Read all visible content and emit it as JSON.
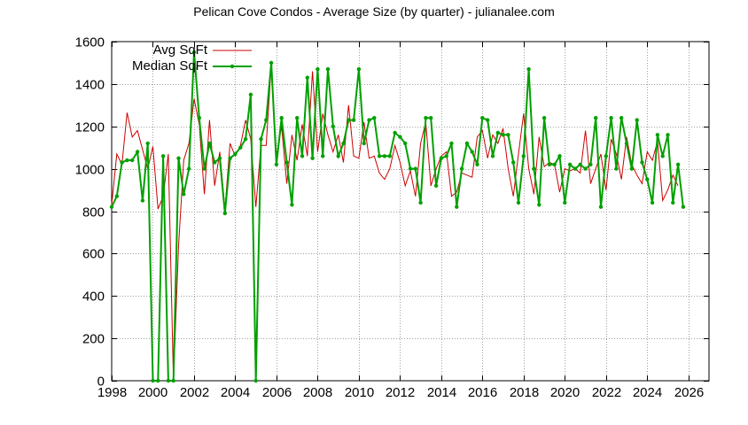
{
  "chart_data": {
    "type": "line",
    "title": "Pelican Cove Condos - Average Size (by quarter) - julianalee.com",
    "xlim": [
      1998,
      2027
    ],
    "ylim": [
      0,
      1600
    ],
    "x_ticks": [
      1998,
      2000,
      2002,
      2004,
      2006,
      2008,
      2010,
      2012,
      2014,
      2016,
      2018,
      2020,
      2022,
      2024,
      2026
    ],
    "y_ticks": [
      0,
      200,
      400,
      600,
      800,
      1000,
      1200,
      1400,
      1600
    ],
    "grid": true,
    "legend_position": "top-left",
    "series": [
      {
        "name": "Avg SqFt",
        "color": "#cc0000",
        "points": [
          [
            1998.0,
            830
          ],
          [
            1998.25,
            1070
          ],
          [
            1998.5,
            1020
          ],
          [
            1998.75,
            1265
          ],
          [
            1999.0,
            1150
          ],
          [
            1999.25,
            1180
          ],
          [
            1999.5,
            1090
          ],
          [
            1999.75,
            1000
          ],
          [
            2000.0,
            1105
          ],
          [
            2000.25,
            810
          ],
          [
            2000.5,
            870
          ],
          [
            2000.75,
            1070
          ],
          [
            2001.0,
            0
          ],
          [
            2001.25,
            640
          ],
          [
            2001.5,
            1040
          ],
          [
            2001.75,
            1120
          ],
          [
            2002.0,
            1330
          ],
          [
            2002.25,
            1210
          ],
          [
            2002.5,
            880
          ],
          [
            2002.75,
            1230
          ],
          [
            2003.0,
            920
          ],
          [
            2003.25,
            1080
          ],
          [
            2003.5,
            810
          ],
          [
            2003.75,
            1120
          ],
          [
            2004.0,
            1060
          ],
          [
            2004.25,
            1110
          ],
          [
            2004.5,
            1230
          ],
          [
            2004.75,
            1140
          ],
          [
            2005.0,
            820
          ],
          [
            2005.25,
            1110
          ],
          [
            2005.5,
            1110
          ],
          [
            2005.75,
            1490
          ],
          [
            2006.0,
            1060
          ],
          [
            2006.25,
            1200
          ],
          [
            2006.5,
            930
          ],
          [
            2006.75,
            1160
          ],
          [
            2007.0,
            1040
          ],
          [
            2007.25,
            1210
          ],
          [
            2007.5,
            1060
          ],
          [
            2007.75,
            1460
          ],
          [
            2008.0,
            1080
          ],
          [
            2008.25,
            1260
          ],
          [
            2008.5,
            1160
          ],
          [
            2008.75,
            1080
          ],
          [
            2009.0,
            1160
          ],
          [
            2009.25,
            1030
          ],
          [
            2009.5,
            1300
          ],
          [
            2009.75,
            1060
          ],
          [
            2010.0,
            1050
          ],
          [
            2010.25,
            1220
          ],
          [
            2010.5,
            1050
          ],
          [
            2010.75,
            1060
          ],
          [
            2011.0,
            980
          ],
          [
            2011.25,
            950
          ],
          [
            2011.5,
            1000
          ],
          [
            2011.75,
            1110
          ],
          [
            2012.0,
            1030
          ],
          [
            2012.25,
            920
          ],
          [
            2012.5,
            990
          ],
          [
            2012.75,
            870
          ],
          [
            2013.0,
            1120
          ],
          [
            2013.25,
            1220
          ],
          [
            2013.5,
            920
          ],
          [
            2013.75,
            1000
          ],
          [
            2014.0,
            1060
          ],
          [
            2014.25,
            1080
          ],
          [
            2014.5,
            870
          ],
          [
            2014.75,
            890
          ],
          [
            2015.0,
            980
          ],
          [
            2015.25,
            970
          ],
          [
            2015.5,
            960
          ],
          [
            2015.75,
            1150
          ],
          [
            2016.0,
            1180
          ],
          [
            2016.25,
            1050
          ],
          [
            2016.5,
            1160
          ],
          [
            2016.75,
            1120
          ],
          [
            2017.0,
            1190
          ],
          [
            2017.25,
            1000
          ],
          [
            2017.5,
            870
          ],
          [
            2017.75,
            1070
          ],
          [
            2018.0,
            1260
          ],
          [
            2018.25,
            1000
          ],
          [
            2018.5,
            880
          ],
          [
            2018.75,
            1150
          ],
          [
            2019.0,
            1010
          ],
          [
            2019.25,
            1030
          ],
          [
            2019.5,
            1020
          ],
          [
            2019.75,
            890
          ],
          [
            2020.0,
            1000
          ],
          [
            2020.25,
            990
          ],
          [
            2020.5,
            1000
          ],
          [
            2020.75,
            980
          ],
          [
            2021.0,
            1180
          ],
          [
            2021.25,
            930
          ],
          [
            2021.5,
            1000
          ],
          [
            2021.75,
            1070
          ],
          [
            2022.0,
            900
          ],
          [
            2022.25,
            1140
          ],
          [
            2022.5,
            1070
          ],
          [
            2022.75,
            950
          ],
          [
            2023.0,
            1150
          ],
          [
            2023.25,
            1020
          ],
          [
            2023.5,
            970
          ],
          [
            2023.75,
            930
          ],
          [
            2024.0,
            1080
          ],
          [
            2024.25,
            1040
          ],
          [
            2024.5,
            1130
          ],
          [
            2024.75,
            850
          ],
          [
            2025.0,
            900
          ],
          [
            2025.25,
            970
          ],
          [
            2025.5,
            920
          ]
        ]
      },
      {
        "name": "Median SqFt",
        "color": "#00a000",
        "points": [
          [
            1998.0,
            820
          ],
          [
            1998.25,
            870
          ],
          [
            1998.5,
            1030
          ],
          [
            1998.75,
            1040
          ],
          [
            1999.0,
            1040
          ],
          [
            1999.25,
            1080
          ],
          [
            1999.5,
            850
          ],
          [
            1999.75,
            1120
          ],
          [
            2000.0,
            0
          ],
          [
            2000.25,
            0
          ],
          [
            2000.5,
            1060
          ],
          [
            2000.75,
            0
          ],
          [
            2001.0,
            0
          ],
          [
            2001.25,
            1050
          ],
          [
            2001.5,
            880
          ],
          [
            2001.75,
            1000
          ],
          [
            2002.0,
            1550
          ],
          [
            2002.25,
            1240
          ],
          [
            2002.5,
            1000
          ],
          [
            2002.75,
            1120
          ],
          [
            2003.0,
            1030
          ],
          [
            2003.25,
            1050
          ],
          [
            2003.5,
            790
          ],
          [
            2003.75,
            1050
          ],
          [
            2004.0,
            1070
          ],
          [
            2004.25,
            1100
          ],
          [
            2004.5,
            1140
          ],
          [
            2004.75,
            1350
          ],
          [
            2005.0,
            0
          ],
          [
            2005.25,
            1140
          ],
          [
            2005.5,
            1230
          ],
          [
            2005.75,
            1500
          ],
          [
            2006.0,
            1020
          ],
          [
            2006.25,
            1240
          ],
          [
            2006.5,
            1030
          ],
          [
            2006.75,
            830
          ],
          [
            2007.0,
            1240
          ],
          [
            2007.25,
            1060
          ],
          [
            2007.5,
            1430
          ],
          [
            2007.75,
            1050
          ],
          [
            2008.0,
            1470
          ],
          [
            2008.25,
            1060
          ],
          [
            2008.5,
            1470
          ],
          [
            2008.75,
            1200
          ],
          [
            2009.0,
            1060
          ],
          [
            2009.25,
            1120
          ],
          [
            2009.5,
            1230
          ],
          [
            2009.75,
            1230
          ],
          [
            2010.0,
            1470
          ],
          [
            2010.25,
            1120
          ],
          [
            2010.5,
            1230
          ],
          [
            2010.75,
            1240
          ],
          [
            2011.0,
            1060
          ],
          [
            2011.25,
            1060
          ],
          [
            2011.5,
            1060
          ],
          [
            2011.75,
            1170
          ],
          [
            2012.0,
            1150
          ],
          [
            2012.25,
            1120
          ],
          [
            2012.5,
            1000
          ],
          [
            2012.75,
            1000
          ],
          [
            2013.0,
            840
          ],
          [
            2013.25,
            1240
          ],
          [
            2013.5,
            1240
          ],
          [
            2013.75,
            920
          ],
          [
            2014.0,
            1050
          ],
          [
            2014.25,
            1060
          ],
          [
            2014.5,
            1120
          ],
          [
            2014.75,
            820
          ],
          [
            2015.0,
            1000
          ],
          [
            2015.25,
            1120
          ],
          [
            2015.5,
            1080
          ],
          [
            2015.75,
            1020
          ],
          [
            2016.0,
            1240
          ],
          [
            2016.25,
            1230
          ],
          [
            2016.5,
            1060
          ],
          [
            2016.75,
            1170
          ],
          [
            2017.0,
            1160
          ],
          [
            2017.25,
            1160
          ],
          [
            2017.5,
            1030
          ],
          [
            2017.75,
            840
          ],
          [
            2018.0,
            1060
          ],
          [
            2018.25,
            1470
          ],
          [
            2018.5,
            1000
          ],
          [
            2018.75,
            830
          ],
          [
            2019.0,
            1240
          ],
          [
            2019.25,
            1020
          ],
          [
            2019.5,
            1020
          ],
          [
            2019.75,
            1060
          ],
          [
            2020.0,
            840
          ],
          [
            2020.25,
            1020
          ],
          [
            2020.5,
            1000
          ],
          [
            2020.75,
            1020
          ],
          [
            2021.0,
            1000
          ],
          [
            2021.25,
            1020
          ],
          [
            2021.5,
            1240
          ],
          [
            2021.75,
            820
          ],
          [
            2022.0,
            1060
          ],
          [
            2022.25,
            1240
          ],
          [
            2022.5,
            1000
          ],
          [
            2022.75,
            1240
          ],
          [
            2023.0,
            1120
          ],
          [
            2023.25,
            1000
          ],
          [
            2023.5,
            1230
          ],
          [
            2023.75,
            1030
          ],
          [
            2024.0,
            950
          ],
          [
            2024.25,
            840
          ],
          [
            2024.5,
            1160
          ],
          [
            2024.75,
            1060
          ],
          [
            2025.0,
            1160
          ],
          [
            2025.25,
            840
          ],
          [
            2025.5,
            1020
          ],
          [
            2025.75,
            820
          ]
        ]
      }
    ]
  }
}
